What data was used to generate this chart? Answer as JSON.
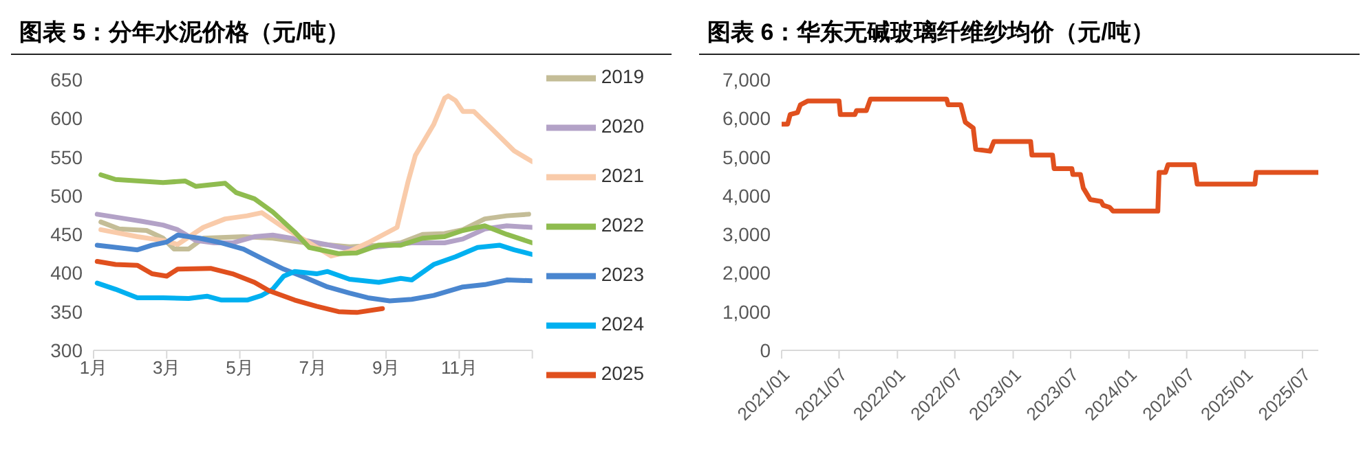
{
  "chart_data": [
    {
      "type": "line",
      "title": "图表 5：分年水泥价格（元/吨）",
      "xlim": [
        1,
        13
      ],
      "xticks": [
        {
          "value": 1,
          "label": "1月"
        },
        {
          "value": 3,
          "label": "3月"
        },
        {
          "value": 5,
          "label": "5月"
        },
        {
          "value": 7,
          "label": "7月"
        },
        {
          "value": 9,
          "label": "9月"
        },
        {
          "value": 11,
          "label": "11月"
        },
        {
          "value": 13,
          "label": null
        }
      ],
      "ylim": [
        300,
        650
      ],
      "yticks": [
        300,
        350,
        400,
        450,
        500,
        550,
        600,
        650
      ],
      "grid": false,
      "legend": "right",
      "marker": "none",
      "series": [
        {
          "name": "2019",
          "color": "#c4bd97",
          "x": [
            1.2,
            1.7,
            2.45,
            2.9,
            3.2,
            3.6,
            4.0,
            5.1,
            5.9,
            6.8,
            8.0,
            8.8,
            9.4,
            10.0,
            10.6,
            11.1,
            11.7,
            12.3,
            12.9
          ],
          "values": [
            466,
            457,
            455,
            445,
            431,
            431,
            445,
            447,
            445,
            439,
            434,
            436,
            439,
            450,
            451,
            456,
            470,
            474,
            476
          ]
        },
        {
          "name": "2020",
          "color": "#b3a2c7",
          "x": [
            1.1,
            1.9,
            2.3,
            2.9,
            3.3,
            3.8,
            4.3,
            4.8,
            5.4,
            5.9,
            6.8,
            8.0,
            8.8,
            9.7,
            10.6,
            11.1,
            11.7,
            12.3,
            13.0
          ],
          "values": [
            476,
            470,
            467,
            462,
            456,
            442,
            439,
            439,
            447,
            449,
            442,
            431,
            434,
            439,
            439,
            444,
            457,
            461,
            459
          ]
        },
        {
          "name": "2021",
          "color": "#f9cbaa",
          "x": [
            1.2,
            2.2,
            2.9,
            3.3,
            4.0,
            4.6,
            5.2,
            5.6,
            6.1,
            6.8,
            7.5,
            8.0,
            8.5,
            9.3,
            9.6,
            9.8,
            10.3,
            10.6,
            10.7,
            10.9,
            11.1,
            11.4,
            11.9,
            12.5,
            13.0
          ],
          "values": [
            456,
            447,
            442,
            437,
            459,
            470,
            474,
            478,
            462,
            442,
            422,
            428,
            439,
            459,
            518,
            552,
            592,
            626,
            629,
            623,
            609,
            609,
            586,
            558,
            544
          ]
        },
        {
          "name": "2022",
          "color": "#8fbc4f",
          "x": [
            1.2,
            1.6,
            2.9,
            3.5,
            3.8,
            4.6,
            4.9,
            5.4,
            5.9,
            6.5,
            6.9,
            7.7,
            8.2,
            8.8,
            9.4,
            10.0,
            10.6,
            11.1,
            11.7,
            12.3,
            13.0
          ],
          "values": [
            527,
            521,
            517,
            519,
            512,
            516,
            504,
            496,
            479,
            453,
            433,
            425,
            426,
            436,
            436,
            445,
            447,
            455,
            461,
            450,
            439
          ]
        },
        {
          "name": "2023",
          "color": "#4a86cf",
          "x": [
            1.1,
            2.2,
            2.6,
            3.0,
            3.3,
            3.9,
            4.5,
            5.1,
            5.6,
            6.2,
            6.8,
            7.4,
            8.0,
            8.5,
            9.1,
            9.7,
            10.3,
            11.1,
            11.7,
            12.3,
            13.0
          ],
          "values": [
            436,
            430,
            436,
            440,
            449,
            445,
            439,
            431,
            419,
            405,
            394,
            382,
            374,
            368,
            364,
            366,
            371,
            382,
            385,
            391,
            390
          ]
        },
        {
          "name": "2024",
          "color": "#00b0f0",
          "x": [
            1.1,
            1.6,
            2.2,
            2.9,
            3.6,
            4.1,
            4.5,
            5.2,
            5.6,
            5.9,
            6.2,
            6.5,
            7.1,
            7.4,
            8.0,
            8.8,
            9.4,
            9.7,
            10.3,
            10.9,
            11.5,
            12.1,
            12.5,
            13.0
          ],
          "values": [
            387,
            379,
            368,
            368,
            367,
            370,
            365,
            365,
            371,
            379,
            396,
            402,
            399,
            402,
            392,
            388,
            393,
            391,
            411,
            421,
            433,
            436,
            430,
            424
          ]
        },
        {
          "name": "2025",
          "color": "#e0501e",
          "x": [
            1.1,
            1.6,
            2.2,
            2.6,
            3.0,
            3.3,
            4.2,
            4.8,
            5.4,
            5.8,
            6.5,
            7.1,
            7.7,
            8.2,
            8.9
          ],
          "values": [
            415,
            411,
            410,
            399,
            396,
            405,
            406,
            399,
            388,
            377,
            365,
            357,
            350,
            349,
            354
          ]
        }
      ]
    },
    {
      "type": "line",
      "title": "图表 6：华东无碱玻璃纤维纱均价（元/吨）",
      "xlim": [
        "2021-01-01",
        "2025-08-20"
      ],
      "xticks": [
        {
          "value": "2021-01-01",
          "label": "2021/01"
        },
        {
          "value": "2021-07-01",
          "label": "2021/07"
        },
        {
          "value": "2022-01-01",
          "label": "2022/01"
        },
        {
          "value": "2022-07-01",
          "label": "2022/07"
        },
        {
          "value": "2023-01-01",
          "label": "2023/01"
        },
        {
          "value": "2023-07-01",
          "label": "2023/07"
        },
        {
          "value": "2024-01-01",
          "label": "2024/01"
        },
        {
          "value": "2024-07-01",
          "label": "2024/07"
        },
        {
          "value": "2025-01-01",
          "label": "2025/01"
        },
        {
          "value": "2025-07-01",
          "label": "2025/07"
        }
      ],
      "ylim": [
        0,
        7000
      ],
      "yticks": [
        0,
        {
          "value": 1000,
          "label": "1,000"
        },
        {
          "value": 2000,
          "label": "2,000"
        },
        {
          "value": 3000,
          "label": "3,000"
        },
        {
          "value": 4000,
          "label": "4,000"
        },
        {
          "value": 5000,
          "label": "5,000"
        },
        {
          "value": 6000,
          "label": "6,000"
        },
        {
          "value": 7000,
          "label": "7,000"
        }
      ],
      "grid": false,
      "legend": false,
      "marker": "none",
      "series": [
        {
          "color": "#e0501e",
          "x": [
            "2021-01-01",
            "2021-01-20",
            "2021-01-28",
            "2021-02-20",
            "2021-03-01",
            "2021-03-25",
            "2021-07-01",
            "2021-07-05",
            "2021-08-20",
            "2021-08-25",
            "2021-09-25",
            "2021-10-08",
            "2022-06-05",
            "2022-06-10",
            "2022-07-20",
            "2022-08-03",
            "2022-08-28",
            "2022-09-05",
            "2022-10-20",
            "2022-11-01",
            "2023-02-25",
            "2023-03-01",
            "2023-05-05",
            "2023-05-10",
            "2023-07-05",
            "2023-07-08",
            "2023-08-01",
            "2023-08-10",
            "2023-09-01",
            "2023-10-05",
            "2023-10-12",
            "2023-11-01",
            "2023-11-12",
            "2024-04-01",
            "2024-04-05",
            "2024-04-25",
            "2024-05-03",
            "2024-07-25",
            "2024-08-03",
            "2025-02-01",
            "2025-02-05",
            "2025-08-20"
          ],
          "values": [
            5850,
            5850,
            6100,
            6150,
            6350,
            6450,
            6450,
            6100,
            6100,
            6200,
            6200,
            6500,
            6500,
            6350,
            6350,
            5900,
            5750,
            5200,
            5150,
            5400,
            5400,
            5050,
            5050,
            4700,
            4700,
            4550,
            4550,
            4200,
            3900,
            3850,
            3750,
            3700,
            3600,
            3600,
            4600,
            4600,
            4800,
            4800,
            4300,
            4300,
            4600,
            4600
          ]
        }
      ]
    }
  ]
}
